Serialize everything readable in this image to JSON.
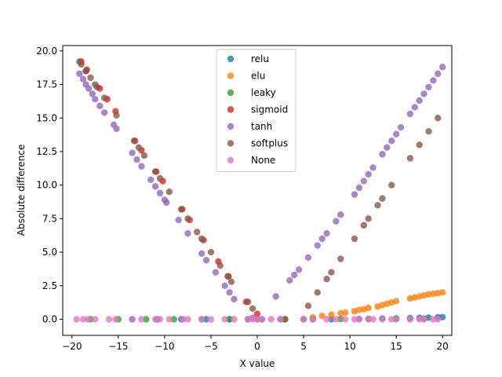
{
  "chart_data": {
    "type": "scatter",
    "title": "",
    "xlabel": "X value",
    "ylabel": "Absolute difference",
    "xlim": [
      -21.0,
      21.0
    ],
    "ylim": [
      -1.2,
      20.4
    ],
    "xticks": [
      -20,
      -15,
      -10,
      -5,
      0,
      5,
      10,
      15,
      20
    ],
    "xtick_labels": [
      "−20",
      "−15",
      "−10",
      "−5",
      "0",
      "5",
      "10",
      "15",
      "20"
    ],
    "yticks": [
      0.0,
      2.5,
      5.0,
      7.5,
      10.0,
      12.5,
      15.0,
      17.5,
      20.0
    ],
    "ytick_labels": [
      "0.0",
      "2.5",
      "5.0",
      "7.5",
      "10.0",
      "12.5",
      "15.0",
      "17.5",
      "20.0"
    ],
    "grid": false,
    "legend_position": "top-center",
    "series": [
      {
        "name": "relu",
        "color": "#1f77b4",
        "x": [
          -19.2,
          -18.5,
          -17.3,
          -13.5,
          -10.8,
          -8.2,
          -5.5,
          -3.0,
          -1.0,
          0.5,
          2.5,
          5.0,
          8.0,
          11.0,
          13.5,
          15.0,
          16.5,
          17.5,
          18.5,
          19.5,
          20.0
        ],
        "y": [
          19.2,
          18.5,
          17.3,
          0.0,
          0.0,
          0.0,
          0.0,
          0.0,
          0.0,
          0.0,
          0.0,
          0.0,
          0.0,
          0.02,
          0.05,
          0.06,
          0.08,
          0.1,
          0.12,
          0.15,
          0.16
        ]
      },
      {
        "name": "elu",
        "color": "#ff7f0e",
        "x": [
          6.0,
          7.0,
          8.0,
          9.0,
          9.5,
          10.5,
          11.0,
          11.5,
          12.0,
          13.0,
          13.5,
          14.0,
          14.5,
          15.0,
          16.5,
          17.0,
          17.5,
          18.0,
          18.5,
          19.0,
          19.5,
          20.0
        ],
        "y": [
          0.15,
          0.25,
          0.35,
          0.45,
          0.5,
          0.6,
          0.7,
          0.75,
          0.85,
          0.95,
          1.05,
          1.15,
          1.25,
          1.35,
          1.55,
          1.62,
          1.7,
          1.78,
          1.85,
          1.9,
          1.95,
          2.0
        ]
      },
      {
        "name": "leaky",
        "color": "#2ca02c",
        "x": [
          -18.0,
          -15.0,
          -12.0,
          -9.0,
          -6.0,
          -3.0,
          0.0,
          3.0,
          6.0,
          9.0,
          12.0,
          15.0,
          18.0
        ],
        "y": [
          0.0,
          0.0,
          0.0,
          0.0,
          0.0,
          0.0,
          0.0,
          0.0,
          0.0,
          0.02,
          0.03,
          0.04,
          0.05
        ]
      },
      {
        "name": "sigmoid",
        "color": "#d62728",
        "x": [
          -19.0,
          -18.4,
          -17.0,
          -16.2,
          -15.3,
          -13.2,
          -12.5,
          -10.9,
          -10.2,
          -8.1,
          -7.3,
          -5.8,
          -4.2,
          -3.1,
          -1.2,
          0.0
        ],
        "y": [
          19.2,
          18.6,
          17.2,
          16.4,
          15.5,
          13.3,
          12.6,
          11.0,
          10.3,
          8.2,
          7.4,
          5.9,
          4.3,
          3.2,
          1.3,
          0.4
        ]
      },
      {
        "name": "tanh",
        "color": "#9467bd",
        "x": [
          -19.2,
          -18.8,
          -18.5,
          -18.2,
          -17.8,
          -17.5,
          -17.0,
          -16.5,
          -15.5,
          -15.2,
          -13.5,
          -13.0,
          -12.5,
          -11.5,
          -11.0,
          -10.5,
          -10.0,
          -9.8,
          -8.5,
          -7.5,
          -6.0,
          -5.5,
          -4.5,
          -3.5,
          -3.0,
          -2.5,
          -0.5,
          2.0,
          3.5,
          4.0,
          4.5,
          5.5,
          6.5,
          7.0,
          7.5,
          8.5,
          9.0,
          10.5,
          11.0,
          11.5,
          12.0,
          12.5,
          13.5,
          14.0,
          14.5,
          15.0,
          15.5,
          16.5,
          17.0,
          17.5,
          18.0,
          18.5,
          19.0,
          19.5,
          20.0
        ],
        "y": [
          18.3,
          17.9,
          17.5,
          17.2,
          16.8,
          16.4,
          15.9,
          15.4,
          14.5,
          14.2,
          12.4,
          11.9,
          11.4,
          10.4,
          9.9,
          9.4,
          8.9,
          8.7,
          7.4,
          6.4,
          4.9,
          4.4,
          3.5,
          2.5,
          2.0,
          1.5,
          0.1,
          1.7,
          2.9,
          3.3,
          3.7,
          4.6,
          5.5,
          6.0,
          6.4,
          7.3,
          7.8,
          9.3,
          9.8,
          10.3,
          10.8,
          11.3,
          12.3,
          12.8,
          13.3,
          13.8,
          14.3,
          15.3,
          15.8,
          16.3,
          16.8,
          17.3,
          17.8,
          18.3,
          18.8
        ]
      },
      {
        "name": "softplus",
        "color": "#8c564b",
        "x": [
          -19.0,
          -18.5,
          -18.0,
          -17.5,
          -16.5,
          -15.2,
          -13.3,
          -12.8,
          -12.2,
          -11.0,
          -10.5,
          -9.5,
          -8.2,
          -7.5,
          -6.5,
          -6.0,
          -5.0,
          -4.0,
          -3.2,
          -2.8,
          -1.0,
          -0.5,
          3.0,
          5.5,
          6.5,
          7.5,
          8.0,
          9.0,
          10.5,
          11.5,
          12.0,
          13.0,
          13.5,
          14.5,
          16.5,
          17.5,
          18.5,
          19.5
        ],
        "y": [
          19.0,
          18.5,
          18.0,
          17.5,
          16.5,
          15.2,
          13.3,
          12.8,
          12.2,
          11.0,
          10.5,
          9.5,
          8.2,
          7.5,
          6.5,
          6.0,
          5.0,
          4.0,
          3.2,
          2.8,
          1.3,
          0.8,
          0.0,
          1.0,
          2.0,
          3.0,
          3.5,
          4.5,
          6.0,
          7.0,
          7.5,
          8.5,
          9.0,
          10.0,
          12.0,
          13.0,
          14.0,
          15.0
        ]
      },
      {
        "name": "None",
        "color": "#e377c2",
        "x": [
          -19.5,
          -18.8,
          -18.3,
          -17.5,
          -16.0,
          -15.3,
          -13.5,
          -12.5,
          -11.0,
          -10.5,
          -9.5,
          -8.0,
          -7.5,
          -6.0,
          -5.0,
          -3.5,
          -2.5,
          -1.0,
          -0.5,
          0.0,
          0.5,
          1.5,
          2.5,
          5.0,
          6.0,
          7.5,
          8.5,
          9.5,
          10.5,
          11.0,
          12.0,
          12.5,
          13.5,
          14.5,
          15.0,
          16.5,
          17.5,
          18.0,
          19.0,
          19.5
        ],
        "y": [
          0.0,
          0.0,
          0.0,
          0.0,
          0.0,
          0.0,
          0.0,
          0.0,
          0.0,
          0.0,
          0.0,
          0.0,
          0.0,
          0.0,
          0.0,
          0.0,
          0.0,
          0.0,
          0.0,
          0.0,
          0.0,
          0.0,
          0.0,
          0.0,
          0.0,
          0.0,
          0.0,
          0.0,
          0.0,
          0.0,
          0.0,
          0.0,
          0.0,
          0.0,
          0.0,
          0.0,
          0.0,
          0.0,
          0.0,
          0.0
        ]
      }
    ]
  }
}
